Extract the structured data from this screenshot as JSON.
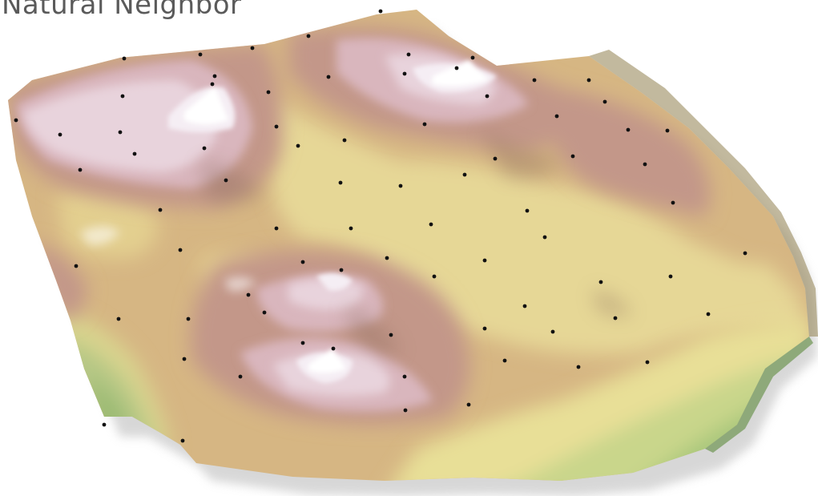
{
  "title": "Natural Neighbor",
  "colors": {
    "low": "#8fb56a",
    "mid_low": "#e7dd96",
    "mid": "#d8bd82",
    "mid_high": "#c4968a",
    "high": "#e3c9d5",
    "peak": "#f6f2f7",
    "sample_point": "#111111",
    "shadow": "#aaaaaa"
  },
  "sample_point_count": 110
}
